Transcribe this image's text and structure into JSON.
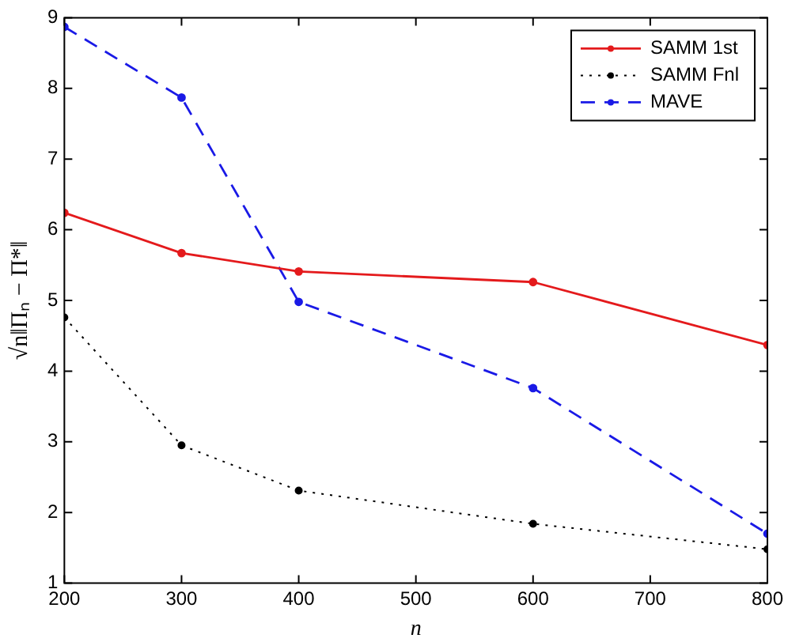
{
  "chart_data": {
    "type": "line",
    "xlabel": "n",
    "ylabel": "√n‖Πₙ − Π*‖",
    "x": [
      200,
      300,
      400,
      600,
      800
    ],
    "series": [
      {
        "name": "SAMM 1st",
        "color": "#e41a1c",
        "line_style": "solid",
        "values": [
          6.24,
          5.67,
          5.41,
          5.26,
          4.37
        ]
      },
      {
        "name": "SAMM Fnl",
        "color": "#000000",
        "line_style": "dotted",
        "values": [
          4.76,
          2.95,
          2.31,
          1.84,
          1.48
        ]
      },
      {
        "name": "MAVE",
        "color": "#1a1ae6",
        "line_style": "dashed",
        "values": [
          8.87,
          7.87,
          4.98,
          3.76,
          1.7
        ]
      }
    ],
    "xlim": [
      200,
      800
    ],
    "xticks": [
      200,
      300,
      400,
      500,
      600,
      700,
      800
    ],
    "ylim": [
      1,
      9
    ],
    "yticks": [
      1,
      2,
      3,
      4,
      5,
      6,
      7,
      8,
      9
    ],
    "grid": false,
    "legend": "top right",
    "marker": "circle"
  }
}
